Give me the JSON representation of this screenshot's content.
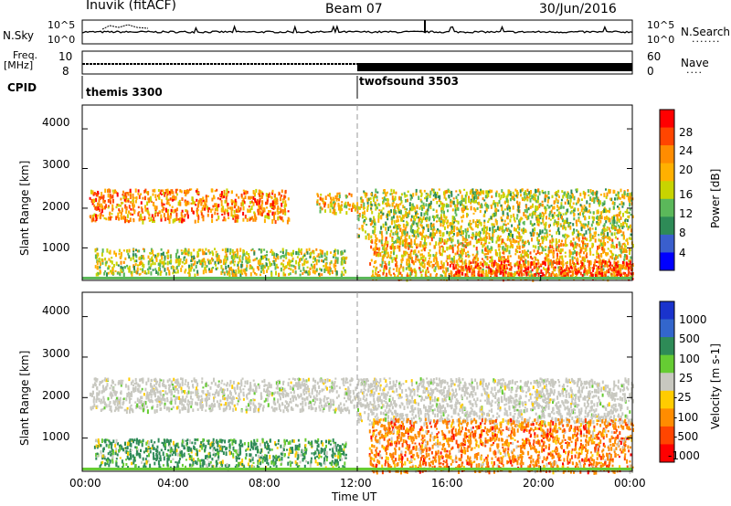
{
  "header": {
    "station": "Inuvik (fitACF)",
    "beam": "Beam 07",
    "date": "30/Jun/2016"
  },
  "nsky_panel": {
    "left_label": "N.Sky",
    "left_ticks": [
      "10^5",
      "10^0"
    ],
    "right_ticks": [
      "10^5",
      "10^0"
    ],
    "right_label": "N.Search",
    "right_legend": "......."
  },
  "freq_panel": {
    "left_label_1": "Freq.",
    "left_label_2": "[MHz]",
    "left_ticks": [
      "10",
      "8"
    ],
    "right_ticks": [
      "60",
      "0"
    ],
    "right_label": "Nave",
    "right_legend": "...."
  },
  "cpid": {
    "label": "CPID",
    "modes": [
      {
        "name": "themis 3300",
        "start_hour": 0
      },
      {
        "name": "twofsound 3503",
        "start_hour": 12
      }
    ]
  },
  "power_panel": {
    "ylabel": "Slant Range [km]",
    "yticks": [
      "4000",
      "3000",
      "2000",
      "1000"
    ],
    "ytick_values": [
      4000,
      3000,
      2000,
      1000
    ],
    "ylim": [
      180,
      4600
    ],
    "colorbar_label": "Power [dB]",
    "colorbar_ticks": [
      "28",
      "24",
      "20",
      "16",
      "12",
      "8",
      "4"
    ],
    "colorbar_colors": [
      "#ff0000",
      "#ff4500",
      "#ff8c00",
      "#ffb000",
      "#c8d400",
      "#5bb85a",
      "#2e8b57",
      "#3a5fcd",
      "#0000ff"
    ]
  },
  "velocity_panel": {
    "ylabel": "Slant Range [km]",
    "yticks": [
      "4000",
      "3000",
      "2000",
      "1000"
    ],
    "colorbar_label": "Velocity [m s-1]",
    "colorbar_ticks": [
      "1000",
      "500",
      "100",
      "25",
      "-25",
      "-100",
      "-500",
      "-1000"
    ],
    "colorbar_colors": [
      "#1a33cc",
      "#3366cc",
      "#2e8b57",
      "#66cc33",
      "#c8c8c0",
      "#ffcc00",
      "#ff8c00",
      "#ff4500",
      "#ff0000"
    ]
  },
  "x_axis": {
    "label": "Time UT",
    "ticks": [
      "00:00",
      "04:00",
      "08:00",
      "12:00",
      "16:00",
      "20:00",
      "00:00"
    ],
    "tick_hours": [
      0,
      4,
      8,
      12,
      16,
      20,
      24
    ]
  },
  "chart_data": [
    {
      "type": "heatmap",
      "title": "Power",
      "xlabel": "Time UT",
      "ylabel": "Slant Range [km]",
      "xlim": [
        0,
        24
      ],
      "ylim": [
        180,
        4600
      ],
      "colorbar": "Power [dB]",
      "bands": [
        {
          "t_start": 0.3,
          "t_end": 9.0,
          "range_low": 1700,
          "range_high": 2500,
          "level_db": 20
        },
        {
          "t_start": 10.2,
          "t_end": 12.0,
          "range_low": 1900,
          "range_high": 2400,
          "level_db": 16
        },
        {
          "t_start": 12.0,
          "t_end": 24.0,
          "range_low": 1300,
          "range_high": 2500,
          "level_db": 12
        },
        {
          "t_start": 0.5,
          "t_end": 11.5,
          "range_low": 350,
          "range_high": 1000,
          "level_db": 12
        },
        {
          "t_start": 12.5,
          "t_end": 24.0,
          "range_low": 250,
          "range_high": 1300,
          "level_db": 16
        },
        {
          "t_start": 16.0,
          "t_end": 24.0,
          "range_low": 250,
          "range_high": 700,
          "level_db": 24
        }
      ]
    },
    {
      "type": "heatmap",
      "title": "Velocity",
      "xlabel": "Time UT",
      "ylabel": "Slant Range [km]",
      "xlim": [
        0,
        24
      ],
      "ylim": [
        180,
        4600
      ],
      "colorbar": "Velocity [m s-1]",
      "bands": [
        {
          "t_start": 0.3,
          "t_end": 12.0,
          "range_low": 1700,
          "range_high": 2500,
          "velocity": 0
        },
        {
          "t_start": 12.0,
          "t_end": 24.0,
          "range_low": 1400,
          "range_high": 2500,
          "velocity": 0
        },
        {
          "t_start": 0.5,
          "t_end": 11.5,
          "range_low": 300,
          "range_high": 1000,
          "velocity": 100
        },
        {
          "t_start": 12.5,
          "t_end": 24.0,
          "range_low": 200,
          "range_high": 1500,
          "velocity": -300
        }
      ]
    }
  ]
}
